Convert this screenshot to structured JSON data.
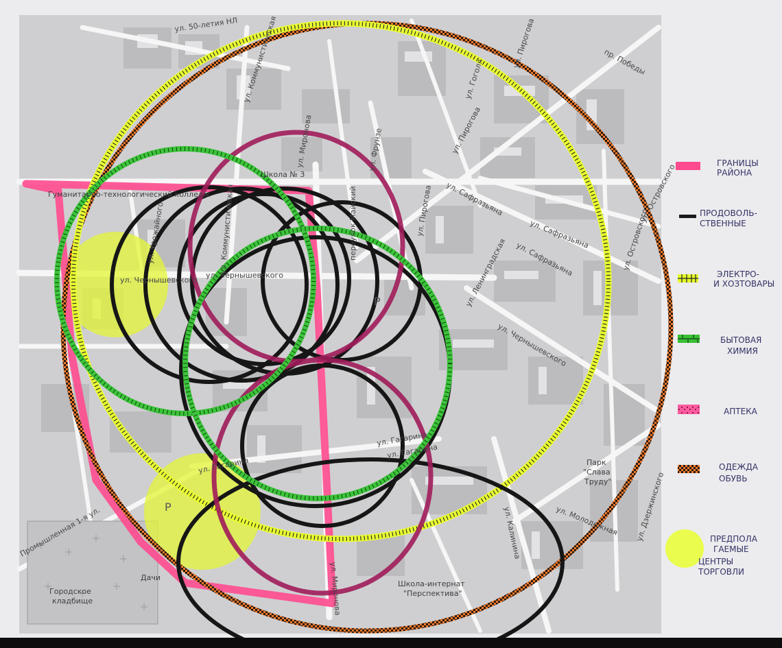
{
  "streets": [
    "ул. 50-летия НЛ",
    "ул. Коммунистическая",
    "ул. Гоголя",
    "ул. Пирогова",
    "пр. Победы",
    "ул. Пирогова",
    "ул. Сафразьяна",
    "ул. Сафразьяна",
    "ул. Сафразьяна",
    "ул. Ленинградская",
    "ул. Островского",
    "ул. Островского",
    "ул. Чернышевского",
    "ул. Чернышевского",
    "ул. Чернышевского",
    "ул. Гагарина",
    "ул. Гагарина",
    "ул. Гагарина",
    "ул. Миронова",
    "ул. Миронова",
    "ул. Калинина",
    "ул. Молодежная",
    "ул. Дзержинского",
    "Промышленная 1-я ул.",
    "ул. Урожайного",
    "ул. Коммунистическая",
    "ул. Фрунзе",
    "переулок Майский",
    "ул. Пирогова"
  ],
  "places": {
    "college": "Гуманитарно-технологический колледж",
    "school3": "Школа № 3",
    "park_line1": "Парк",
    "park_line2": "\"Слава",
    "park_line3": "Труду\"",
    "boarding_line1": "Школа-интернат",
    "boarding_line2": "\"Перспектива\"",
    "cemetery_line1": "Городское",
    "cemetery_line2": "кладбище",
    "dachi": "Дачи",
    "parking_symbol": "P"
  },
  "legend": [
    {
      "swatch": "district-boundary",
      "color": "#ff4a8f",
      "lines": [
        "ГРАНИЦЫ",
        "РАЙОНА"
      ]
    },
    {
      "swatch": "food",
      "color": "#1a1a1a",
      "lines": [
        "ПРОДОВОЛЬ-",
        "СТВЕННЫЕ"
      ]
    },
    {
      "swatch": "electro",
      "color": "#e4f92c",
      "lines": [
        "ЭЛЕКТРО-",
        "И ХОЗТОВАРЫ"
      ]
    },
    {
      "swatch": "household-chem",
      "color": "#39c034",
      "lines": [
        "БЫТОВАЯ",
        "ХИМИЯ"
      ]
    },
    {
      "swatch": "pharmacy",
      "color": "#ff3c92",
      "lines": [
        "АПТЕКА"
      ]
    },
    {
      "swatch": "clothing",
      "color": "#e8742a",
      "lines": [
        "ОДЕЖДА",
        "ОБУВЬ"
      ]
    },
    {
      "swatch": "trade-centers",
      "color": "#eaff3c",
      "lines": [
        "ПРЕДПОЛА",
        "ГАЕМЫЕ",
        "ЦЕНТРЫ",
        "ТОРГОВЛИ"
      ]
    }
  ]
}
